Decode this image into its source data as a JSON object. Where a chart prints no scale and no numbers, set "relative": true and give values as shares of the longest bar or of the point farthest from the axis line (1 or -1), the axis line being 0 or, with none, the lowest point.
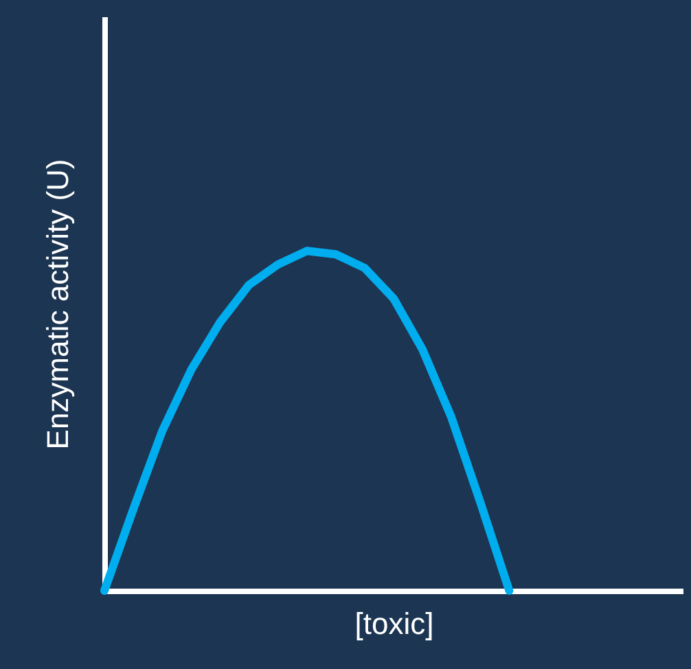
{
  "chart_data": {
    "type": "line",
    "relative": true,
    "xlabel": "[toxic]",
    "ylabel": "Enzymatic activity (U)",
    "categories": [
      null,
      null,
      null,
      null,
      null,
      null,
      null,
      null,
      null,
      null,
      null,
      null,
      null,
      null,
      null,
      null,
      null,
      null,
      null,
      null,
      null
    ],
    "series": [
      {
        "color": "#00aeef",
        "values": [
          0,
          0.24,
          0.47,
          0.65,
          0.79,
          0.9,
          0.96,
          1,
          0.99,
          0.95,
          0.86,
          0.71,
          0.51,
          0.26,
          0,
          null,
          null,
          null,
          null,
          null,
          null
        ]
      }
    ],
    "tick_labels": false,
    "grid": false,
    "marker": "none",
    "line_style": "solid"
  }
}
